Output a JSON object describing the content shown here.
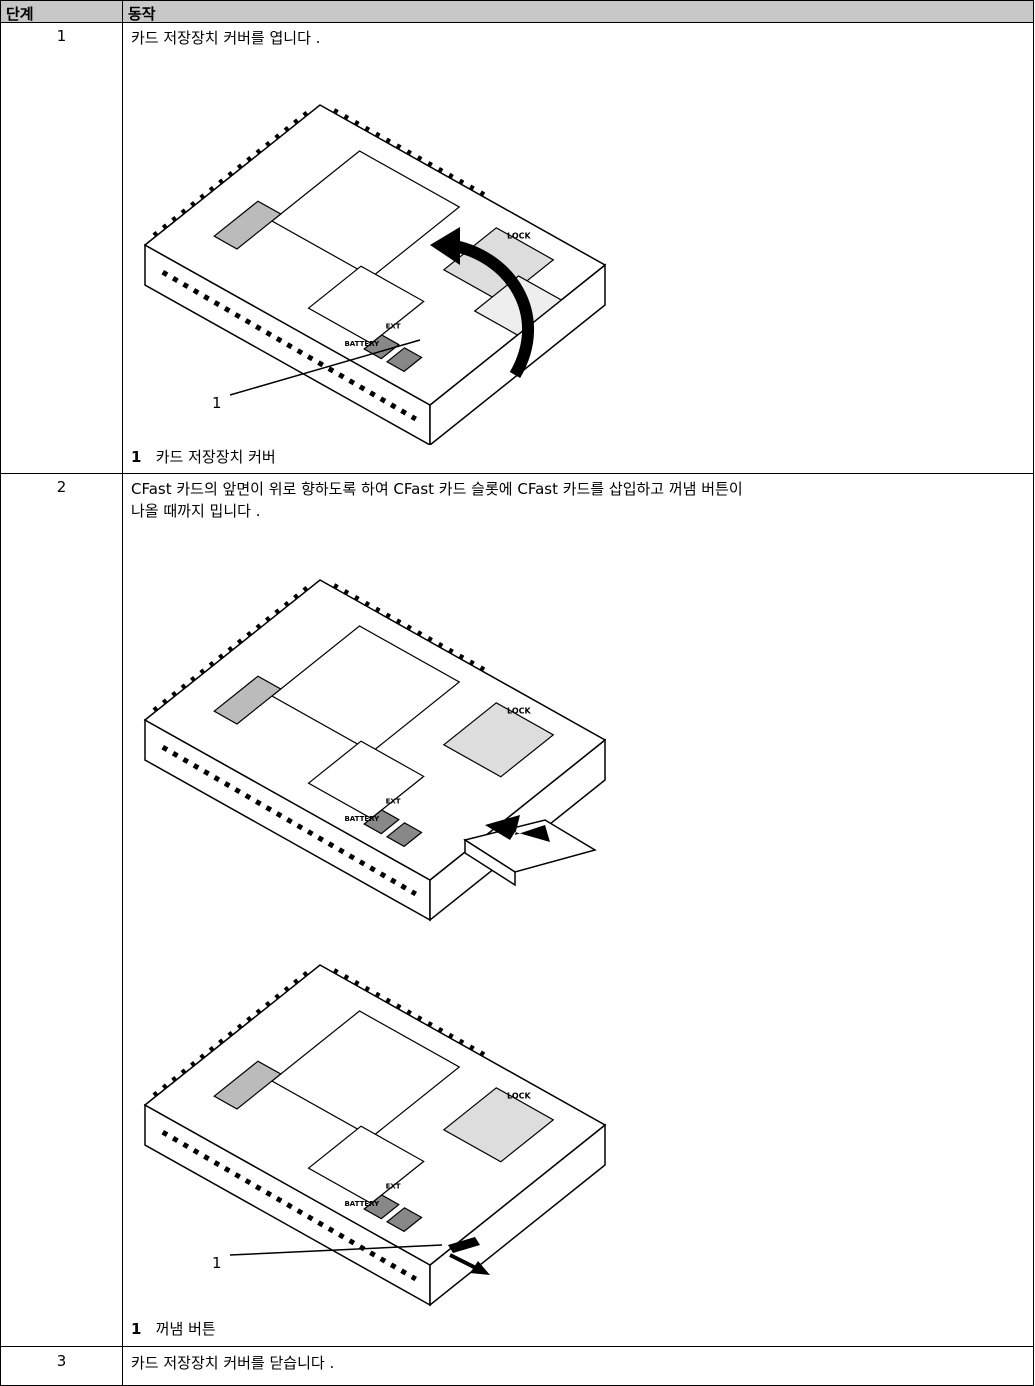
{
  "header": {
    "step": "단계",
    "action": "동작"
  },
  "device_labels": {
    "lock": "LOCK",
    "battery": "BATTERY",
    "ext": "EXT"
  },
  "rows": [
    {
      "step": "1",
      "lines": [
        "카드 저장장치 커버를 엽니다 ."
      ],
      "callouts": [
        "1"
      ],
      "legend": {
        "number": "1",
        "text": "카드 저장장치 커버"
      }
    },
    {
      "step": "2",
      "lines": [
        "CFast 카드의 앞면이 위로 향하도록 하여 CFast 카드 슬롯에 CFast 카드를 삽입하고 꺼냄 버튼이",
        "나올 때까지 밉니다 ."
      ],
      "callouts": [
        "1"
      ],
      "legend": {
        "number": "1",
        "text": "꺼냄 버튼"
      }
    },
    {
      "step": "3",
      "lines": [
        "카드 저장장치 커버를 닫습니다 ."
      ]
    }
  ]
}
